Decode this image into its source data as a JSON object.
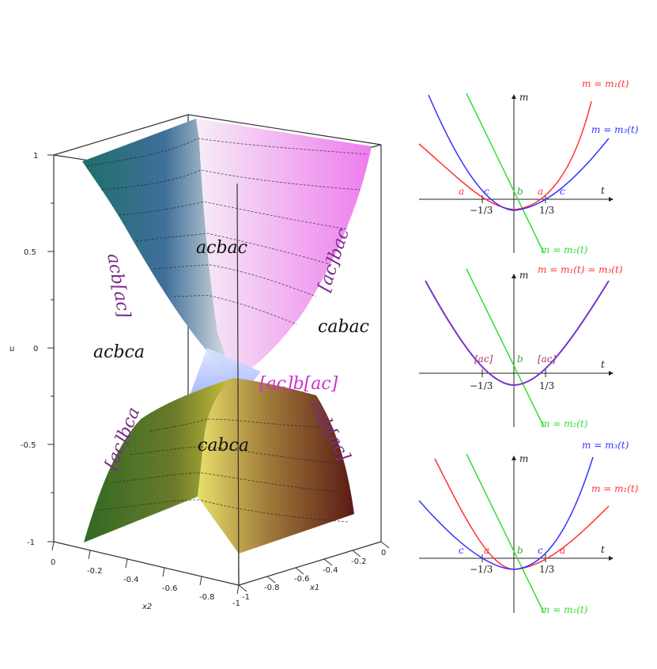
{
  "surface": {
    "axes": {
      "u_label": "u",
      "x1_label": "x1",
      "x2_label": "x2",
      "u_ticks": [
        "1",
        "0.5",
        "0",
        "-0.5",
        "-1"
      ],
      "x2_ticks": [
        "0",
        "-0.2",
        "-0.4",
        "-0.6",
        "-0.8",
        "-1"
      ],
      "x1_ticks": [
        "-1",
        "-0.8",
        "-0.6",
        "-0.4",
        "-0.2",
        "0"
      ]
    },
    "region_labels": {
      "acbac": "acbac",
      "acb_ac": "acb[ac]",
      "ac_bac": "[ac]bac",
      "acbca": "acbca",
      "cabac": "cabac",
      "ac_b_ac": "[ac]b[ac]",
      "ac_bca": "[ac]bca",
      "cabca": "cabca",
      "cab_ac": "cab[ac]"
    },
    "colors": {
      "magenta": "#cc33cc",
      "purple": "#7a2a8a"
    }
  },
  "panels": {
    "top": {
      "axis_m": "m",
      "axis_t": "t",
      "label_m1": "m = m₁(t)",
      "label_m3": "m = m₃(t)",
      "label_m2": "m = m₂(t)",
      "ticks": [
        "−1/3",
        "1/3"
      ],
      "points": [
        "a",
        "c",
        "b",
        "a",
        "c"
      ]
    },
    "middle": {
      "axis_m": "m",
      "axis_t": "t",
      "label_m13": "m = m₁(t) = m₃(t)",
      "label_m2": "m = m₂(t)",
      "ticks": [
        "−1/3",
        "1/3"
      ],
      "points": [
        "[ac]",
        "b",
        "[ac]"
      ]
    },
    "bottom": {
      "axis_m": "m",
      "axis_t": "t",
      "label_m3": "m = m₃(t)",
      "label_m1": "m = m₁(t)",
      "label_m2": "m = m₂(t)",
      "ticks": [
        "−1/3",
        "1/3"
      ],
      "points": [
        "c",
        "a",
        "b",
        "c",
        "a"
      ]
    },
    "colors": {
      "m1": "#ff3333",
      "m2": "#33dd33",
      "m3": "#3333ff",
      "merged": "#7733cc"
    }
  }
}
